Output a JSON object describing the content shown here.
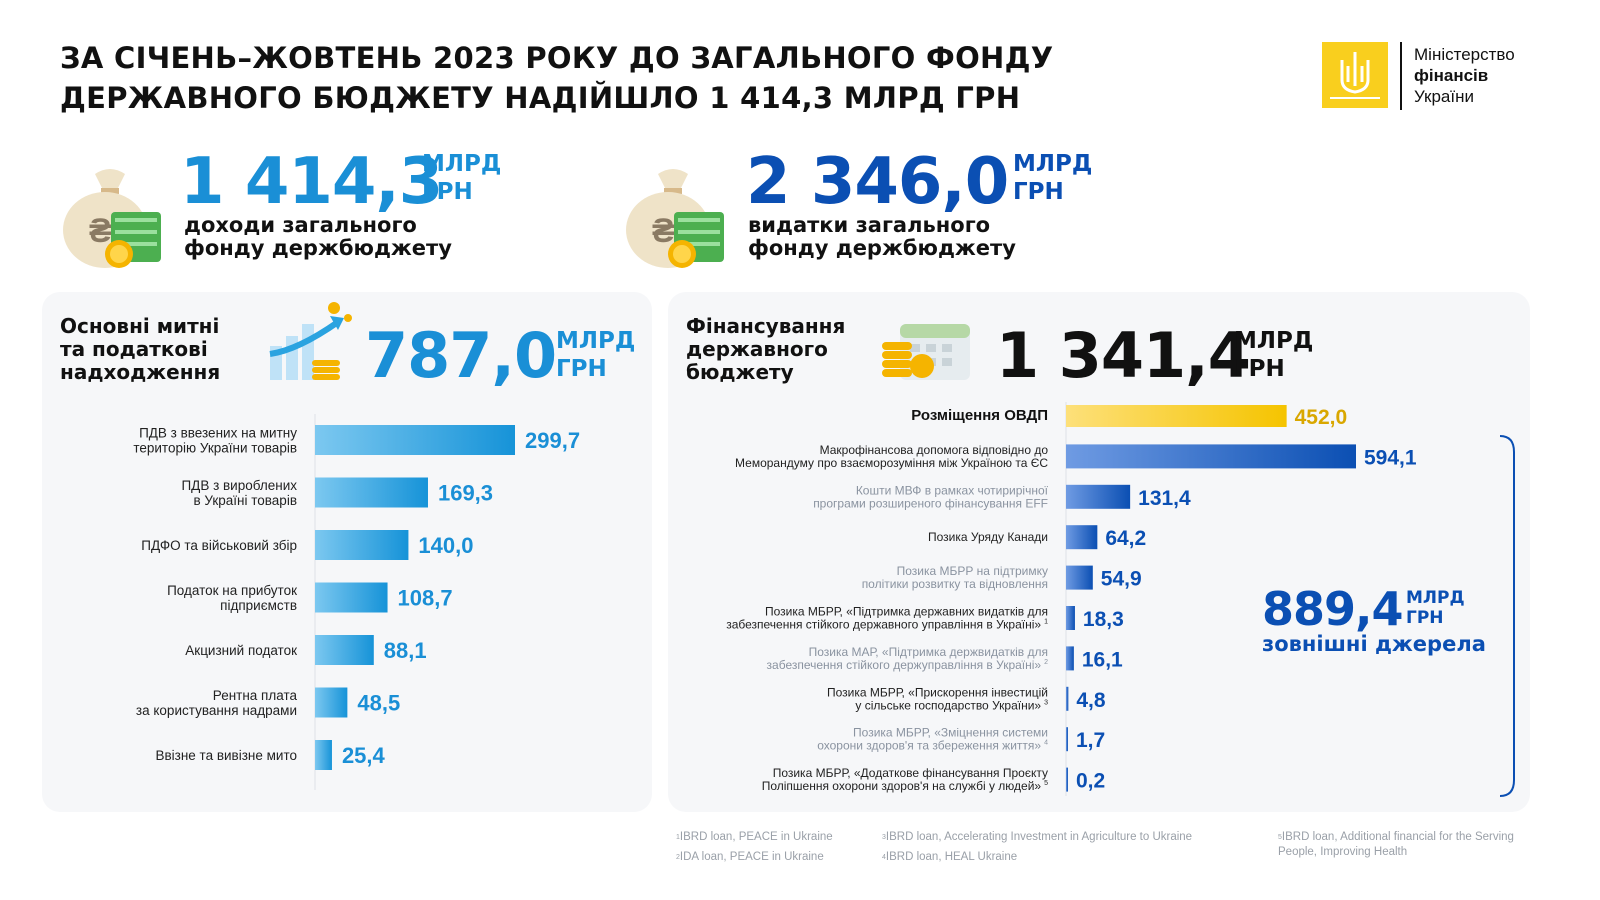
{
  "title": "ЗА СІЧЕНЬ–ЖОВТЕНЬ 2023 РОКУ ДО ЗАГАЛЬНОГО ФОНДУ ДЕРЖАВНОГО БЮДЖЕТУ НАДІЙШЛО 1 414,3 МЛРД ГРН",
  "logo": {
    "line1": "Міністерство",
    "line2": "фінансів",
    "line3": "України"
  },
  "kpi_income": {
    "value": "1 414,3",
    "unit1": "МЛРД",
    "unit2": "ГРН",
    "desc1": "доходи загального",
    "desc2": "фонду держбюджету"
  },
  "kpi_expense": {
    "value": "2 346,0",
    "unit1": "МЛРД",
    "unit2": "ГРН",
    "desc1": "видатки загального",
    "desc2": "фонду держбюджету"
  },
  "tax_panel": {
    "title1": "Основні митні",
    "title2": "та податкові",
    "title3": "надходження",
    "value": "787,0",
    "unit1": "МЛРД",
    "unit2": "ГРН"
  },
  "fin_panel": {
    "title1": "Фінансування",
    "title2": "державного",
    "title3": "бюджету",
    "value": "1 341,4",
    "unit1": "МЛРД",
    "unit2": "ГРН"
  },
  "external": {
    "value": "889,4",
    "unit1": "МЛРД",
    "unit2": "ГРН",
    "label": "зовнішні джерела"
  },
  "colors": {
    "blue_light": "#2aa3e0",
    "blue_dark": "#0b4fb3",
    "yellow": "#f5c400",
    "yellow_text": "#d9a700",
    "text": "#111111"
  },
  "chart_data": [
    {
      "type": "bar",
      "orientation": "horizontal",
      "categories": [
        [
          "ПДВ з ввезених на митну",
          "територію України товарів"
        ],
        [
          "ПДВ з вироблених",
          "в Україні товарів"
        ],
        [
          "ПДФО та військовий збір"
        ],
        [
          "Податок на прибуток",
          "підприємств"
        ],
        [
          "Акцизний податок"
        ],
        [
          "Рентна плата",
          "за користування надрами"
        ],
        [
          "Ввізне та вивізне мито"
        ]
      ],
      "values": [
        299.7,
        169.3,
        140.0,
        108.7,
        88.1,
        48.5,
        25.4
      ],
      "value_labels": [
        "299,7",
        "169,3",
        "140,0",
        "108,7",
        "88,1",
        "48,5",
        "25,4"
      ]
    },
    {
      "type": "bar",
      "orientation": "horizontal",
      "categories": [
        [
          "Розміщення ОВДП"
        ],
        [
          "Макрофінансова допомога відповідно до",
          "Меморандуму про взаєморозуміння між Україною та ЄС"
        ],
        [
          "Кошти МВФ в рамках чотирирічної",
          "програми розширеного фінансування EFF"
        ],
        [
          "Позика Уряду Канади"
        ],
        [
          "Позика МБРР на підтримку",
          "політики розвитку та відновлення"
        ],
        [
          "Позика МБРР, «Підтримка державних видатків для",
          "забезпечення стійкого державного управління в Україні»"
        ],
        [
          "Позика МАР, «Підтримка держвидатків для",
          "забезпечення стійкого держуправління в Україні»"
        ],
        [
          "Позика МБРР, «Прискорення інвестицій",
          "у сільське господарство України»"
        ],
        [
          "Позика МБРР, «Зміцнення системи",
          "охорони здоров'я та збереження життя»"
        ],
        [
          "Позика МБРР, «Додаткове фінансування Проєкту",
          "Поліпшення охорони здоров'я на службі у людей»"
        ]
      ],
      "footnote_marks": [
        "",
        "",
        "",
        "",
        "",
        "1",
        "2",
        "3",
        "4",
        "5"
      ],
      "values": [
        452.0,
        594.1,
        131.4,
        64.2,
        54.9,
        18.3,
        16.1,
        4.8,
        1.7,
        0.2
      ],
      "value_labels": [
        "452,0",
        "594,1",
        "131,4",
        "64,2",
        "54,9",
        "18,3",
        "16,1",
        "4,8",
        "1,7",
        "0,2"
      ]
    }
  ],
  "footnotes": [
    {
      "n": "1",
      "text": "IBRD loan, PEACE in Ukraine"
    },
    {
      "n": "2",
      "text": "IDA loan, PEACE in Ukraine"
    },
    {
      "n": "3",
      "text": "IBRD loan, Accelerating Investment in Agriculture to Ukraine"
    },
    {
      "n": "4",
      "text": "IBRD loan, HEAL Ukraine"
    },
    {
      "n": "5",
      "text": "IBRD loan, Additional financial for the Serving People, Improving Health"
    }
  ]
}
